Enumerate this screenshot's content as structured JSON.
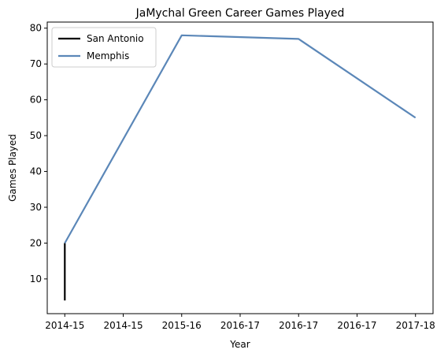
{
  "chart_data": {
    "type": "line",
    "title": "JaMychal Green Career Games Played",
    "xlabel": "Year",
    "ylabel": "Games Played",
    "x_tick_labels": [
      "2014-15",
      "2014-15",
      "2015-16",
      "2016-17",
      "2016-17",
      "2016-17",
      "2017-18"
    ],
    "y_ticks": [
      10,
      20,
      30,
      40,
      50,
      60,
      70,
      80
    ],
    "xlim": [
      -0.3,
      6.3
    ],
    "ylim": [
      0.3,
      81.7
    ],
    "grid": false,
    "legend_position": "top-left",
    "series": [
      {
        "name": "San Antonio",
        "color": "#000000",
        "x": [
          0,
          0
        ],
        "y": [
          4,
          20
        ]
      },
      {
        "name": "Memphis",
        "color": "#5b87b8",
        "x": [
          0,
          2,
          4,
          6
        ],
        "y": [
          20,
          78,
          77,
          55
        ]
      }
    ]
  }
}
